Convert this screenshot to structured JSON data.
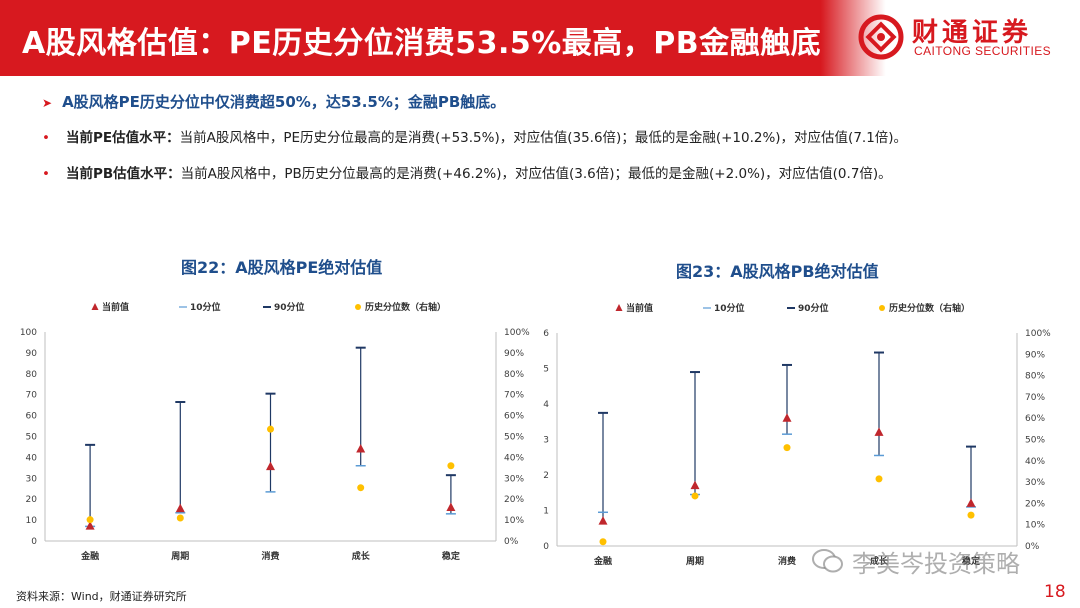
{
  "header": {
    "title": "A股风格估值：PE历史分位消费53.5%最高，PB金融触底",
    "logo_cn": "财通证券",
    "logo_en": "CAITONG SECURITIES"
  },
  "summary": {
    "lead": "A股风格PE历史分位中仅消费超50%，达53.5%；金融PB触底。",
    "bullets": [
      {
        "label": "当前PE估值水平：",
        "text": "当前A股风格中，PE历史分位最高的是消费(+53.5%)，对应估值(35.6倍)；最低的是金融(+10.2%)，对应估值(7.1倍)。"
      },
      {
        "label": "当前PB估值水平：",
        "text": "当前A股风格中，PB历史分位最高的是消费(+46.2%)，对应估值(3.6倍)；最低的是金融(+2.0%)，对应估值(0.7倍)。"
      }
    ]
  },
  "chart_data": [
    {
      "type": "scatter",
      "title": "图22：A股风格PE绝对估值",
      "categories": [
        "金融",
        "周期",
        "消费",
        "成长",
        "稳定"
      ],
      "legend": [
        "当前值",
        "10分位",
        "90分位",
        "历史分位数（右轴）"
      ],
      "legend_position": "top",
      "ylim": [
        0,
        100
      ],
      "yticks": [
        "0",
        "10",
        "20",
        "30",
        "40",
        "50",
        "60",
        "70",
        "80",
        "90",
        "100"
      ],
      "y2lim": [
        0,
        1
      ],
      "y2ticks": [
        "0%",
        "10%",
        "20%",
        "30%",
        "40%",
        "50%",
        "60%",
        "70%",
        "80%",
        "90%",
        "100%"
      ],
      "series": [
        {
          "name": "当前值",
          "values": [
            7.1,
            15.5,
            35.6,
            44.0,
            16.0
          ]
        },
        {
          "name": "10分位",
          "values": [
            7.0,
            13.5,
            23.5,
            36.0,
            13.0
          ]
        },
        {
          "name": "90分位",
          "values": [
            46.0,
            66.5,
            70.5,
            92.5,
            31.5
          ]
        },
        {
          "name": "历史分位数（右轴）",
          "values": [
            0.102,
            0.11,
            0.535,
            0.255,
            0.36
          ]
        }
      ],
      "colors": {
        "current": "#c0272d",
        "p10": "#5b9bd5",
        "p90": "#1f3864",
        "pct": "#ffc000"
      },
      "grid": false
    },
    {
      "type": "scatter",
      "title": "图23：A股风格PB绝对估值",
      "categories": [
        "金融",
        "周期",
        "消费",
        "成长",
        "稳定"
      ],
      "legend": [
        "当前值",
        "10分位",
        "90分位",
        "历史分位数（右轴）"
      ],
      "legend_position": "top",
      "ylim": [
        0,
        6
      ],
      "yticks": [
        "0",
        "1",
        "2",
        "3",
        "4",
        "5",
        "6"
      ],
      "y2lim": [
        0,
        1
      ],
      "y2ticks": [
        "0%",
        "10%",
        "20%",
        "30%",
        "40%",
        "50%",
        "60%",
        "70%",
        "80%",
        "90%",
        "100%"
      ],
      "series": [
        {
          "name": "当前值",
          "values": [
            0.7,
            1.7,
            3.6,
            3.2,
            1.2
          ]
        },
        {
          "name": "10分位",
          "values": [
            0.95,
            1.45,
            3.15,
            2.55,
            1.1
          ]
        },
        {
          "name": "90分位",
          "values": [
            3.75,
            4.9,
            5.1,
            5.45,
            2.8
          ]
        },
        {
          "name": "历史分位数（右轴）",
          "values": [
            0.02,
            0.235,
            0.462,
            0.315,
            0.145
          ]
        }
      ],
      "colors": {
        "current": "#c0272d",
        "p10": "#5b9bd5",
        "p90": "#1f3864",
        "pct": "#ffc000"
      },
      "grid": false
    }
  ],
  "footer": {
    "source": "资料来源：Wind，财通证券研究所",
    "watermark": "李美岑投资策略",
    "page": "18"
  }
}
